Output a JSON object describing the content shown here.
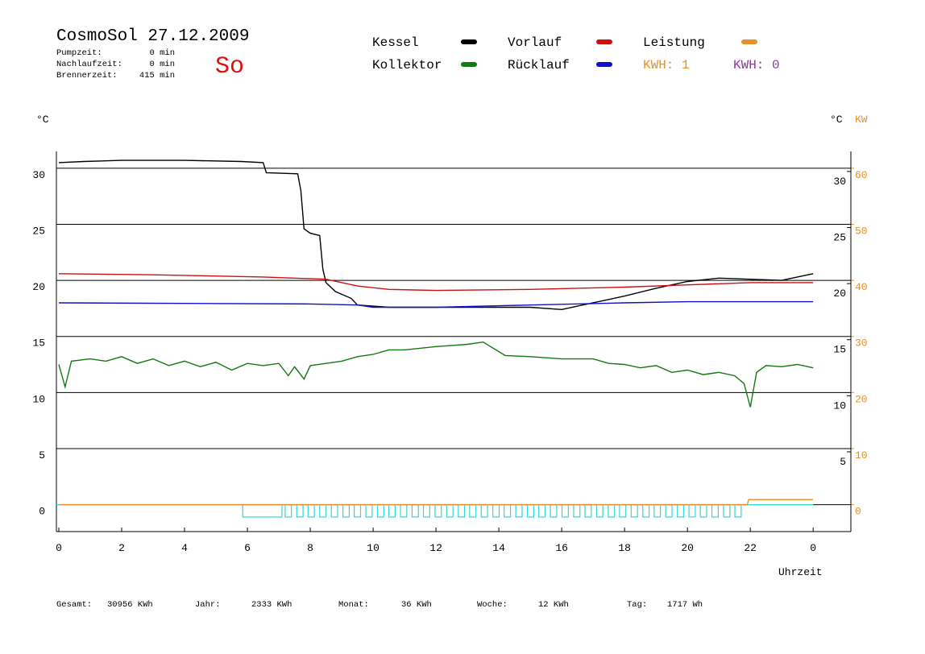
{
  "chart_data": {
    "type": "line",
    "title": "CosmoSol 27.12.2009",
    "day": "So",
    "stats": [
      {
        "label": "Pumpzeit:",
        "value": "0 min"
      },
      {
        "label": "Nachlaufzeit:",
        "value": "0 min"
      },
      {
        "label": "Brennerzeit:",
        "value": "415 min"
      }
    ],
    "kwh_labels": [
      {
        "text": "KWH: 1",
        "color": "#e8902a"
      },
      {
        "text": "KWH: 0",
        "color": "#8a3a9a"
      }
    ],
    "y_label": "°C",
    "y_label_right": "°C",
    "y2_label": "KW",
    "x_label": "Uhrzeit",
    "xlim": [
      0,
      25.2
    ],
    "xticks": [
      0,
      2,
      4,
      6,
      8,
      10,
      12,
      14,
      16,
      18,
      20,
      22,
      {
        "value": 24,
        "label": "0"
      }
    ],
    "ylim": [
      -2.4,
      31.5
    ],
    "yticks": [
      0,
      5,
      10,
      15,
      20,
      25,
      30
    ],
    "yticks_right": [
      5,
      10,
      15,
      20,
      25,
      30
    ],
    "y2lim": [
      -4.8,
      63
    ],
    "y2ticks": [
      0,
      10,
      20,
      30,
      40,
      50,
      60
    ],
    "grid": true,
    "series": [
      {
        "name": "Kessel",
        "color": "#000000",
        "x": [
          0,
          0.8,
          2,
          4,
          5.8,
          6.5,
          6.6,
          7.6,
          7.7,
          7.8,
          8.0,
          8.3,
          8.4,
          8.5,
          8.8,
          9.3,
          9.5,
          10.5,
          12,
          15,
          16.0,
          16.5,
          17.5,
          18,
          19,
          20,
          21,
          23,
          24
        ],
        "values": [
          30.5,
          30.6,
          30.7,
          30.7,
          30.6,
          30.5,
          29.6,
          29.5,
          28.0,
          24.6,
          24.2,
          24.0,
          21.0,
          19.8,
          19.0,
          18.4,
          17.8,
          17.6,
          17.6,
          17.6,
          17.4,
          17.7,
          18.3,
          18.6,
          19.3,
          19.9,
          20.2,
          20.0,
          20.6
        ]
      },
      {
        "name": "Kollektor",
        "color": "#147814",
        "x": [
          0,
          0.2,
          0.4,
          1,
          1.5,
          2,
          2.5,
          3,
          3.5,
          4,
          4.5,
          5,
          5.5,
          6,
          6.5,
          7,
          7.3,
          7.5,
          7.8,
          8.0,
          8.5,
          9.0,
          9.5,
          10.0,
          10.5,
          11,
          12,
          12.5,
          13,
          13.5,
          14.2,
          15,
          16,
          17,
          17.5,
          18,
          18.5,
          19,
          19.5,
          20,
          20.5,
          21,
          21.5,
          21.8,
          22.0,
          22.2,
          22.5,
          23,
          23.5,
          24
        ],
        "values": [
          12.5,
          10.5,
          12.8,
          13.0,
          12.8,
          13.2,
          12.6,
          13.0,
          12.4,
          12.8,
          12.3,
          12.7,
          12.0,
          12.6,
          12.4,
          12.6,
          11.5,
          12.3,
          11.2,
          12.4,
          12.6,
          12.8,
          13.2,
          13.4,
          13.8,
          13.8,
          14.1,
          14.2,
          14.3,
          14.5,
          13.3,
          13.2,
          13.0,
          13.0,
          12.6,
          12.5,
          12.2,
          12.4,
          11.8,
          12.0,
          11.6,
          11.8,
          11.5,
          10.8,
          8.7,
          11.8,
          12.4,
          12.3,
          12.5,
          12.2
        ]
      },
      {
        "name": "Vorlauf",
        "color": "#cc1010",
        "x": [
          0,
          3,
          6.5,
          8.5,
          9.5,
          10.5,
          12,
          15,
          18,
          20,
          22,
          24
        ],
        "values": [
          20.6,
          20.5,
          20.3,
          20.1,
          19.5,
          19.2,
          19.1,
          19.2,
          19.4,
          19.6,
          19.8,
          19.8
        ]
      },
      {
        "name": "Rücklauf",
        "color": "#1010cc",
        "x": [
          0,
          8,
          9.5,
          10,
          12,
          15,
          18,
          20,
          24
        ],
        "values": [
          18.0,
          17.9,
          17.8,
          17.6,
          17.6,
          17.8,
          18.0,
          18.1,
          18.1
        ]
      },
      {
        "name": "Leistung",
        "color": "#e8902a",
        "axis": "y2",
        "x": [
          0,
          21.9,
          21.95,
          24
        ],
        "values": [
          0,
          0,
          0.9,
          0.9
        ]
      }
    ],
    "pump": {
      "color": "#30d8d8",
      "level": -1.1,
      "intervals": [
        [
          5.85,
          7.1
        ],
        [
          7.2,
          7.4
        ],
        [
          7.57,
          7.77
        ],
        [
          7.93,
          8.13
        ],
        [
          8.3,
          8.5
        ],
        [
          8.67,
          8.87
        ],
        [
          9.04,
          9.24
        ],
        [
          9.4,
          9.6
        ],
        [
          9.77,
          9.97
        ],
        [
          10.14,
          10.34
        ],
        [
          10.5,
          10.7
        ],
        [
          10.87,
          11.07
        ],
        [
          11.24,
          11.44
        ],
        [
          11.6,
          11.8
        ],
        [
          11.97,
          12.17
        ],
        [
          12.34,
          12.54
        ],
        [
          12.71,
          12.91
        ],
        [
          13.07,
          13.27
        ],
        [
          13.44,
          13.64
        ],
        [
          13.81,
          14.01
        ],
        [
          14.17,
          14.37
        ],
        [
          14.54,
          14.74
        ],
        [
          14.91,
          15.11
        ],
        [
          15.27,
          15.47
        ],
        [
          15.64,
          15.84
        ],
        [
          16.01,
          16.21
        ],
        [
          16.38,
          16.58
        ],
        [
          16.74,
          16.94
        ],
        [
          17.11,
          17.31
        ],
        [
          17.48,
          17.68
        ],
        [
          17.84,
          18.04
        ],
        [
          18.21,
          18.41
        ],
        [
          18.58,
          18.78
        ],
        [
          18.94,
          19.14
        ],
        [
          19.31,
          19.51
        ],
        [
          19.68,
          19.88
        ],
        [
          20.05,
          20.25
        ],
        [
          20.41,
          20.61
        ],
        [
          20.78,
          20.98
        ],
        [
          21.15,
          21.35
        ],
        [
          21.51,
          21.71
        ]
      ]
    },
    "totals": [
      {
        "label": "Gesamt:",
        "value": "30956 KWh"
      },
      {
        "label": "Jahr:",
        "value": "2333 KWh"
      },
      {
        "label": "Monat:",
        "value": "36 KWh"
      },
      {
        "label": "Woche:",
        "value": "12 KWh"
      },
      {
        "label": "Tag:",
        "value": "1717 Wh"
      }
    ]
  }
}
